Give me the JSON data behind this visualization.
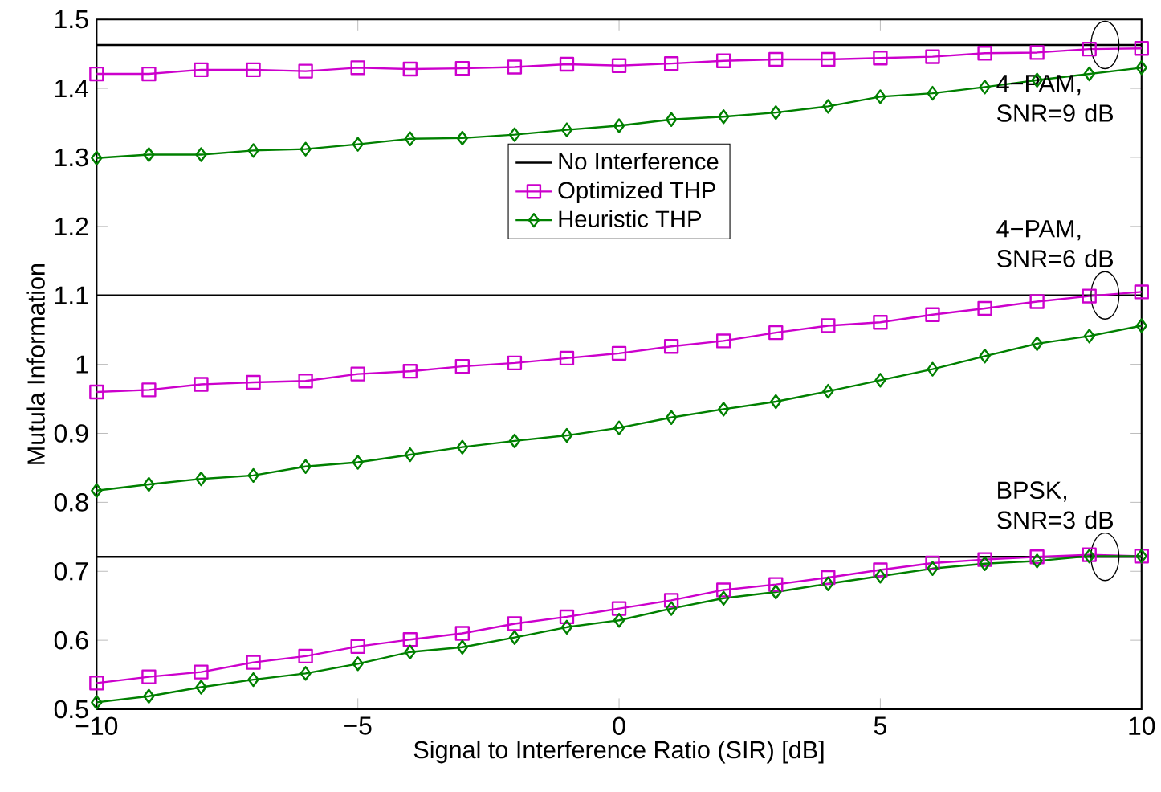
{
  "chart_data": {
    "type": "line",
    "xlabel": "Signal to Interference Ratio (SIR) [dB]",
    "ylabel": "Mutula Information",
    "x": [
      -10,
      -9,
      -8,
      -7,
      -6,
      -5,
      -4,
      -3,
      -2,
      -1,
      0,
      1,
      2,
      3,
      4,
      5,
      6,
      7,
      8,
      9,
      10
    ],
    "xlim": [
      -10,
      10
    ],
    "ylim": [
      0.5,
      1.5
    ],
    "xticks": [
      {
        "value": -10,
        "label": "−10"
      },
      {
        "value": -5,
        "label": "−5"
      },
      0,
      5,
      10
    ],
    "yticks": [
      0.5,
      0.6,
      0.7,
      0.8,
      0.9,
      1,
      1.1,
      1.2,
      1.3,
      1.4,
      1.5
    ],
    "legend": "top",
    "grid": false,
    "series": [
      {
        "name": "Optimized THP",
        "color": "#cc00cc",
        "marker": "square",
        "values": [
          1.421,
          1.421,
          1.427,
          1.427,
          1.425,
          1.43,
          1.428,
          1.429,
          1.431,
          1.435,
          1.433,
          1.436,
          1.44,
          1.442,
          1.442,
          1.444,
          1.446,
          1.451,
          1.452,
          1.457,
          1.458
        ]
      },
      {
        "name": "Heuristic THP",
        "color": "#008000",
        "marker": "diamond",
        "values": [
          1.299,
          1.304,
          1.304,
          1.31,
          1.312,
          1.319,
          1.327,
          1.328,
          1.333,
          1.34,
          1.346,
          1.355,
          1.359,
          1.365,
          1.374,
          1.388,
          1.393,
          1.402,
          1.412,
          1.421,
          1.43
        ]
      },
      {
        "color": "#cc00cc",
        "marker": "square",
        "values": [
          0.96,
          0.963,
          0.971,
          0.974,
          0.976,
          0.986,
          0.99,
          0.997,
          1.002,
          1.009,
          1.016,
          1.026,
          1.034,
          1.046,
          1.056,
          1.061,
          1.072,
          1.081,
          1.091,
          1.099,
          1.105
        ]
      },
      {
        "color": "#008000",
        "marker": "diamond",
        "values": [
          0.817,
          0.826,
          0.834,
          0.839,
          0.852,
          0.858,
          0.869,
          0.88,
          0.889,
          0.897,
          0.908,
          0.923,
          0.935,
          0.946,
          0.961,
          0.977,
          0.993,
          1.012,
          1.03,
          1.041,
          1.056
        ]
      },
      {
        "color": "#cc00cc",
        "marker": "square",
        "values": [
          0.538,
          0.547,
          0.554,
          0.568,
          0.577,
          0.591,
          0.601,
          0.61,
          0.624,
          0.634,
          0.646,
          0.658,
          0.673,
          0.681,
          0.691,
          0.702,
          0.712,
          0.717,
          0.721,
          0.724,
          0.722
        ]
      },
      {
        "color": "#008000",
        "marker": "diamond",
        "values": [
          0.51,
          0.519,
          0.532,
          0.543,
          0.552,
          0.566,
          0.583,
          0.59,
          0.604,
          0.619,
          0.629,
          0.646,
          0.661,
          0.67,
          0.682,
          0.693,
          0.704,
          0.711,
          0.715,
          0.722,
          0.722
        ]
      }
    ],
    "ref_lines": [
      {
        "axis": "y",
        "value": 1.463,
        "label": "No Interference",
        "color": "#000000"
      },
      {
        "axis": "y",
        "value": 1.1,
        "color": "#000000"
      },
      {
        "axis": "y",
        "value": 0.721,
        "color": "#000000"
      }
    ],
    "annotations": [
      "4−PAM, SNR=9 dB",
      "4−PAM, SNR=6 dB",
      "BPSK, SNR=3 dB"
    ]
  }
}
